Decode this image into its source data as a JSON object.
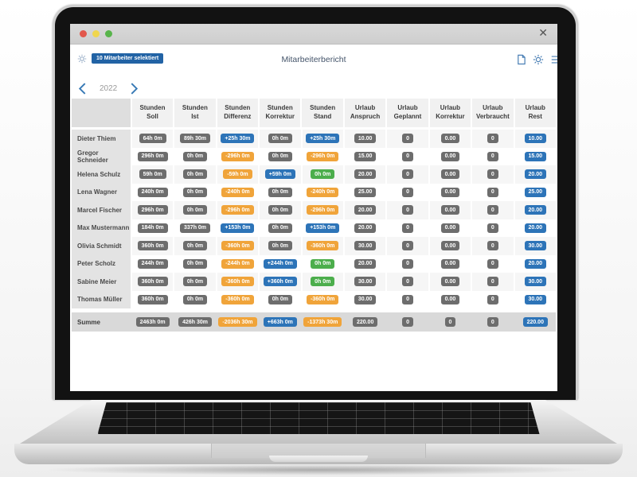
{
  "window": {
    "close_glyph": "✕"
  },
  "header": {
    "selected_badge": "10 Mitarbeiter selektiert",
    "title": "Mitarbeiterbericht"
  },
  "year_nav": {
    "year": "2022"
  },
  "colors": {
    "accent_blue": "#2263a5",
    "icon_blue": "#4a7fb5",
    "gray": "#6d6d6d",
    "blue": "#2d74b8",
    "orange": "#f0a43a",
    "green": "#4cae4c"
  },
  "table": {
    "columns": [
      [
        "Stunden",
        "Soll"
      ],
      [
        "Stunden",
        "Ist"
      ],
      [
        "Stunden",
        "Differenz"
      ],
      [
        "Stunden",
        "Korrektur"
      ],
      [
        "Stunden",
        "Stand"
      ],
      [
        "Urlaub",
        "Anspruch"
      ],
      [
        "Urlaub",
        "Geplannt"
      ],
      [
        "Urlaub",
        "Korrektur"
      ],
      [
        "Urlaub",
        "Verbraucht"
      ],
      [
        "Urlaub",
        "Rest"
      ]
    ],
    "rows": [
      {
        "name": "Dieter Thiem",
        "cells": [
          {
            "t": "64h 0m",
            "c": "gray"
          },
          {
            "t": "89h 30m",
            "c": "gray"
          },
          {
            "t": "+25h 30m",
            "c": "blue"
          },
          {
            "t": "0h 0m",
            "c": "gray"
          },
          {
            "t": "+25h 30m",
            "c": "blue"
          },
          {
            "t": "10.00",
            "c": "gray"
          },
          {
            "t": "0",
            "c": "gray"
          },
          {
            "t": "0.00",
            "c": "gray"
          },
          {
            "t": "0",
            "c": "gray"
          },
          {
            "t": "10.00",
            "c": "blue"
          }
        ]
      },
      {
        "name": "Gregor Schneider",
        "cells": [
          {
            "t": "296h 0m",
            "c": "gray"
          },
          {
            "t": "0h 0m",
            "c": "gray"
          },
          {
            "t": "-296h 0m",
            "c": "orange"
          },
          {
            "t": "0h 0m",
            "c": "gray"
          },
          {
            "t": "-296h 0m",
            "c": "orange"
          },
          {
            "t": "15.00",
            "c": "gray"
          },
          {
            "t": "0",
            "c": "gray"
          },
          {
            "t": "0.00",
            "c": "gray"
          },
          {
            "t": "0",
            "c": "gray"
          },
          {
            "t": "15.00",
            "c": "blue"
          }
        ]
      },
      {
        "name": "Helena Schulz",
        "cells": [
          {
            "t": "59h 0m",
            "c": "gray"
          },
          {
            "t": "0h 0m",
            "c": "gray"
          },
          {
            "t": "-59h 0m",
            "c": "orange"
          },
          {
            "t": "+59h 0m",
            "c": "blue"
          },
          {
            "t": "0h 0m",
            "c": "green"
          },
          {
            "t": "20.00",
            "c": "gray"
          },
          {
            "t": "0",
            "c": "gray"
          },
          {
            "t": "0.00",
            "c": "gray"
          },
          {
            "t": "0",
            "c": "gray"
          },
          {
            "t": "20.00",
            "c": "blue"
          }
        ]
      },
      {
        "name": "Lena Wagner",
        "cells": [
          {
            "t": "240h 0m",
            "c": "gray"
          },
          {
            "t": "0h 0m",
            "c": "gray"
          },
          {
            "t": "-240h 0m",
            "c": "orange"
          },
          {
            "t": "0h 0m",
            "c": "gray"
          },
          {
            "t": "-240h 0m",
            "c": "orange"
          },
          {
            "t": "25.00",
            "c": "gray"
          },
          {
            "t": "0",
            "c": "gray"
          },
          {
            "t": "0.00",
            "c": "gray"
          },
          {
            "t": "0",
            "c": "gray"
          },
          {
            "t": "25.00",
            "c": "blue"
          }
        ]
      },
      {
        "name": "Marcel Fischer",
        "cells": [
          {
            "t": "296h 0m",
            "c": "gray"
          },
          {
            "t": "0h 0m",
            "c": "gray"
          },
          {
            "t": "-296h 0m",
            "c": "orange"
          },
          {
            "t": "0h 0m",
            "c": "gray"
          },
          {
            "t": "-296h 0m",
            "c": "orange"
          },
          {
            "t": "20.00",
            "c": "gray"
          },
          {
            "t": "0",
            "c": "gray"
          },
          {
            "t": "0.00",
            "c": "gray"
          },
          {
            "t": "0",
            "c": "gray"
          },
          {
            "t": "20.00",
            "c": "blue"
          }
        ]
      },
      {
        "name": "Max Mustermann",
        "cells": [
          {
            "t": "184h 0m",
            "c": "gray"
          },
          {
            "t": "337h 0m",
            "c": "gray"
          },
          {
            "t": "+153h 0m",
            "c": "blue"
          },
          {
            "t": "0h 0m",
            "c": "gray"
          },
          {
            "t": "+153h 0m",
            "c": "blue"
          },
          {
            "t": "20.00",
            "c": "gray"
          },
          {
            "t": "0",
            "c": "gray"
          },
          {
            "t": "0.00",
            "c": "gray"
          },
          {
            "t": "0",
            "c": "gray"
          },
          {
            "t": "20.00",
            "c": "blue"
          }
        ]
      },
      {
        "name": "Olivia Schmidt",
        "cells": [
          {
            "t": "360h 0m",
            "c": "gray"
          },
          {
            "t": "0h 0m",
            "c": "gray"
          },
          {
            "t": "-360h 0m",
            "c": "orange"
          },
          {
            "t": "0h 0m",
            "c": "gray"
          },
          {
            "t": "-360h 0m",
            "c": "orange"
          },
          {
            "t": "30.00",
            "c": "gray"
          },
          {
            "t": "0",
            "c": "gray"
          },
          {
            "t": "0.00",
            "c": "gray"
          },
          {
            "t": "0",
            "c": "gray"
          },
          {
            "t": "30.00",
            "c": "blue"
          }
        ]
      },
      {
        "name": "Peter Scholz",
        "cells": [
          {
            "t": "244h 0m",
            "c": "gray"
          },
          {
            "t": "0h 0m",
            "c": "gray"
          },
          {
            "t": "-244h 0m",
            "c": "orange"
          },
          {
            "t": "+244h 0m",
            "c": "blue"
          },
          {
            "t": "0h 0m",
            "c": "green"
          },
          {
            "t": "20.00",
            "c": "gray"
          },
          {
            "t": "0",
            "c": "gray"
          },
          {
            "t": "0.00",
            "c": "gray"
          },
          {
            "t": "0",
            "c": "gray"
          },
          {
            "t": "20.00",
            "c": "blue"
          }
        ]
      },
      {
        "name": "Sabine Meier",
        "cells": [
          {
            "t": "360h 0m",
            "c": "gray"
          },
          {
            "t": "0h 0m",
            "c": "gray"
          },
          {
            "t": "-360h 0m",
            "c": "orange"
          },
          {
            "t": "+360h 0m",
            "c": "blue"
          },
          {
            "t": "0h 0m",
            "c": "green"
          },
          {
            "t": "30.00",
            "c": "gray"
          },
          {
            "t": "0",
            "c": "gray"
          },
          {
            "t": "0.00",
            "c": "gray"
          },
          {
            "t": "0",
            "c": "gray"
          },
          {
            "t": "30.00",
            "c": "blue"
          }
        ]
      },
      {
        "name": "Thomas Müller",
        "cells": [
          {
            "t": "360h 0m",
            "c": "gray"
          },
          {
            "t": "0h 0m",
            "c": "gray"
          },
          {
            "t": "-360h 0m",
            "c": "orange"
          },
          {
            "t": "0h 0m",
            "c": "gray"
          },
          {
            "t": "-360h 0m",
            "c": "orange"
          },
          {
            "t": "30.00",
            "c": "gray"
          },
          {
            "t": "0",
            "c": "gray"
          },
          {
            "t": "0.00",
            "c": "gray"
          },
          {
            "t": "0",
            "c": "gray"
          },
          {
            "t": "30.00",
            "c": "blue"
          }
        ]
      }
    ],
    "summary": {
      "name": "Summe",
      "cells": [
        {
          "t": "2463h 0m",
          "c": "gray"
        },
        {
          "t": "426h 30m",
          "c": "gray"
        },
        {
          "t": "-2036h 30m",
          "c": "orange"
        },
        {
          "t": "+663h 0m",
          "c": "blue"
        },
        {
          "t": "-1373h 30m",
          "c": "orange"
        },
        {
          "t": "220.00",
          "c": "gray"
        },
        {
          "t": "0",
          "c": "gray"
        },
        {
          "t": "0",
          "c": "gray"
        },
        {
          "t": "0",
          "c": "gray"
        },
        {
          "t": "220.00",
          "c": "blue"
        }
      ]
    }
  }
}
